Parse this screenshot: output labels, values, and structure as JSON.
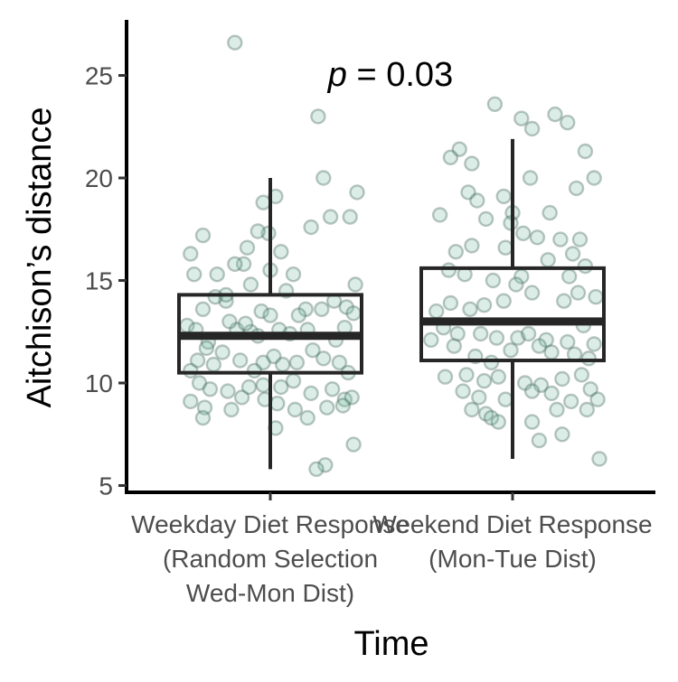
{
  "chart_data": {
    "type": "boxplot",
    "xlabel": "Time",
    "ylabel": "Aitchison’s distance",
    "ylim": [
      5,
      27
    ],
    "yticks": [
      5,
      10,
      15,
      20,
      25
    ],
    "grid": false,
    "legend": "none",
    "annotation": {
      "p_symbol": "p",
      "rest": " = 0.03"
    },
    "categories": [
      {
        "lines": [
          "Weekday Diet Response",
          "(Random Selection",
          "Wed-Mon Dist)"
        ]
      },
      {
        "lines": [
          "Weekend Diet Response",
          "(Mon-Tue Dist)"
        ]
      }
    ],
    "boxes": [
      {
        "whisker_low": 5.8,
        "q1": 10.5,
        "median": 12.3,
        "q3": 14.3,
        "whisker_high": 20.0
      },
      {
        "whisker_low": 6.3,
        "q1": 11.1,
        "median": 13.0,
        "q3": 15.6,
        "whisker_high": 21.9
      }
    ],
    "points": [
      [
        [
          0.3,
          26.6
        ],
        [
          0.77,
          23.0
        ],
        [
          0.8,
          20.0
        ],
        [
          0.99,
          19.3
        ],
        [
          0.49,
          17.3
        ],
        [
          0.43,
          17.4
        ],
        [
          0.12,
          17.2
        ],
        [
          0.73,
          17.6
        ],
        [
          0.37,
          16.6
        ],
        [
          0.05,
          16.3
        ],
        [
          0.56,
          16.4
        ],
        [
          0.84,
          18.1
        ],
        [
          0.53,
          19.1
        ],
        [
          0.95,
          18.1
        ],
        [
          0.46,
          18.8
        ],
        [
          0.35,
          15.8
        ],
        [
          0.5,
          15.5
        ],
        [
          0.3,
          15.8
        ],
        [
          0.07,
          15.3
        ],
        [
          0.2,
          15.3
        ],
        [
          0.63,
          15.3
        ],
        [
          0.98,
          14.8
        ],
        [
          0.93,
          13.7
        ],
        [
          0.79,
          13.6
        ],
        [
          0.45,
          13.5
        ],
        [
          0.5,
          13.3
        ],
        [
          0.25,
          14.0
        ],
        [
          0.19,
          14.2
        ],
        [
          0.12,
          13.6
        ],
        [
          0.03,
          12.8
        ],
        [
          0.08,
          12.6
        ],
        [
          0.15,
          12.0
        ],
        [
          0.39,
          12.5
        ],
        [
          0.43,
          12.3
        ],
        [
          0.31,
          12.6
        ],
        [
          0.55,
          12.6
        ],
        [
          0.61,
          12.4
        ],
        [
          0.71,
          12.6
        ],
        [
          0.87,
          12.1
        ],
        [
          0.92,
          12.7
        ],
        [
          0.97,
          13.4
        ],
        [
          0.7,
          13.6
        ],
        [
          0.66,
          13.3
        ],
        [
          0.27,
          13.0
        ],
        [
          0.14,
          11.7
        ],
        [
          0.09,
          11.1
        ],
        [
          0.18,
          10.9
        ],
        [
          0.23,
          11.5
        ],
        [
          0.33,
          11.1
        ],
        [
          0.46,
          11.0
        ],
        [
          0.52,
          11.3
        ],
        [
          0.57,
          10.9
        ],
        [
          0.65,
          11.0
        ],
        [
          0.74,
          11.6
        ],
        [
          0.8,
          11.2
        ],
        [
          0.89,
          11.0
        ],
        [
          0.94,
          10.5
        ],
        [
          0.1,
          10.0
        ],
        [
          0.16,
          9.7
        ],
        [
          0.26,
          9.6
        ],
        [
          0.34,
          9.3
        ],
        [
          0.38,
          9.8
        ],
        [
          0.46,
          9.9
        ],
        [
          0.56,
          9.8
        ],
        [
          0.63,
          10.1
        ],
        [
          0.73,
          9.5
        ],
        [
          0.85,
          9.7
        ],
        [
          0.92,
          9.2
        ],
        [
          0.96,
          9.3
        ],
        [
          0.05,
          9.1
        ],
        [
          0.13,
          8.8
        ],
        [
          0.28,
          8.7
        ],
        [
          0.47,
          9.2
        ],
        [
          0.54,
          9.0
        ],
        [
          0.64,
          8.7
        ],
        [
          0.82,
          8.8
        ],
        [
          0.91,
          8.9
        ],
        [
          0.12,
          8.3
        ],
        [
          0.53,
          7.8
        ],
        [
          0.71,
          8.3
        ],
        [
          0.97,
          7.0
        ],
        [
          0.81,
          6.0
        ],
        [
          0.76,
          5.8
        ],
        [
          0.41,
          10.6
        ],
        [
          0.59,
          14.5
        ],
        [
          0.25,
          14.3
        ],
        [
          0.86,
          14.0
        ],
        [
          0.36,
          12.9
        ],
        [
          0.05,
          10.6
        ],
        [
          0.39,
          14.8
        ]
      ],
      [
        [
          0.2,
          21.4
        ],
        [
          0.15,
          21.0
        ],
        [
          0.4,
          23.6
        ],
        [
          0.55,
          22.9
        ],
        [
          0.61,
          22.4
        ],
        [
          0.74,
          23.1
        ],
        [
          0.81,
          22.7
        ],
        [
          0.91,
          21.3
        ],
        [
          0.27,
          20.7
        ],
        [
          0.6,
          20.0
        ],
        [
          0.86,
          19.5
        ],
        [
          0.96,
          20.0
        ],
        [
          0.45,
          19.1
        ],
        [
          0.25,
          19.3
        ],
        [
          0.3,
          18.9
        ],
        [
          0.35,
          18.0
        ],
        [
          0.09,
          18.2
        ],
        [
          0.5,
          18.3
        ],
        [
          0.71,
          18.3
        ],
        [
          0.49,
          17.8
        ],
        [
          0.56,
          17.3
        ],
        [
          0.64,
          17.1
        ],
        [
          0.77,
          17.0
        ],
        [
          0.88,
          17.0
        ],
        [
          0.84,
          16.3
        ],
        [
          0.7,
          16.0
        ],
        [
          0.46,
          16.6
        ],
        [
          0.27,
          16.7
        ],
        [
          0.18,
          16.4
        ],
        [
          0.14,
          15.5
        ],
        [
          0.23,
          15.3
        ],
        [
          0.39,
          15.0
        ],
        [
          0.55,
          15.2
        ],
        [
          0.82,
          15.2
        ],
        [
          0.91,
          15.7
        ],
        [
          0.97,
          14.2
        ],
        [
          0.87,
          14.4
        ],
        [
          0.79,
          14.0
        ],
        [
          0.61,
          14.4
        ],
        [
          0.45,
          14.0
        ],
        [
          0.34,
          13.8
        ],
        [
          0.26,
          13.6
        ],
        [
          0.15,
          13.9
        ],
        [
          0.07,
          13.5
        ],
        [
          0.11,
          12.7
        ],
        [
          0.19,
          12.4
        ],
        [
          0.32,
          12.4
        ],
        [
          0.41,
          12.2
        ],
        [
          0.53,
          12.2
        ],
        [
          0.59,
          12.4
        ],
        [
          0.69,
          12.1
        ],
        [
          0.81,
          12.0
        ],
        [
          0.9,
          12.8
        ],
        [
          0.96,
          11.9
        ],
        [
          0.93,
          11.2
        ],
        [
          0.85,
          11.4
        ],
        [
          0.72,
          11.5
        ],
        [
          0.65,
          11.8
        ],
        [
          0.49,
          11.6
        ],
        [
          0.38,
          11.0
        ],
        [
          0.29,
          11.3
        ],
        [
          0.17,
          11.8
        ],
        [
          0.24,
          10.4
        ],
        [
          0.34,
          10.1
        ],
        [
          0.42,
          10.3
        ],
        [
          0.57,
          10.0
        ],
        [
          0.66,
          9.9
        ],
        [
          0.78,
          10.2
        ],
        [
          0.89,
          10.4
        ],
        [
          0.94,
          9.7
        ],
        [
          0.12,
          10.3
        ],
        [
          0.22,
          9.6
        ],
        [
          0.31,
          9.3
        ],
        [
          0.46,
          9.2
        ],
        [
          0.61,
          9.6
        ],
        [
          0.72,
          9.5
        ],
        [
          0.83,
          9.1
        ],
        [
          0.98,
          9.2
        ],
        [
          0.27,
          8.7
        ],
        [
          0.35,
          8.5
        ],
        [
          0.38,
          8.3
        ],
        [
          0.42,
          8.1
        ],
        [
          0.61,
          8.1
        ],
        [
          0.75,
          8.7
        ],
        [
          0.92,
          8.7
        ],
        [
          0.65,
          7.2
        ],
        [
          0.78,
          7.5
        ],
        [
          0.99,
          6.3
        ],
        [
          0.52,
          14.8
        ],
        [
          0.04,
          12.1
        ]
      ]
    ]
  }
}
